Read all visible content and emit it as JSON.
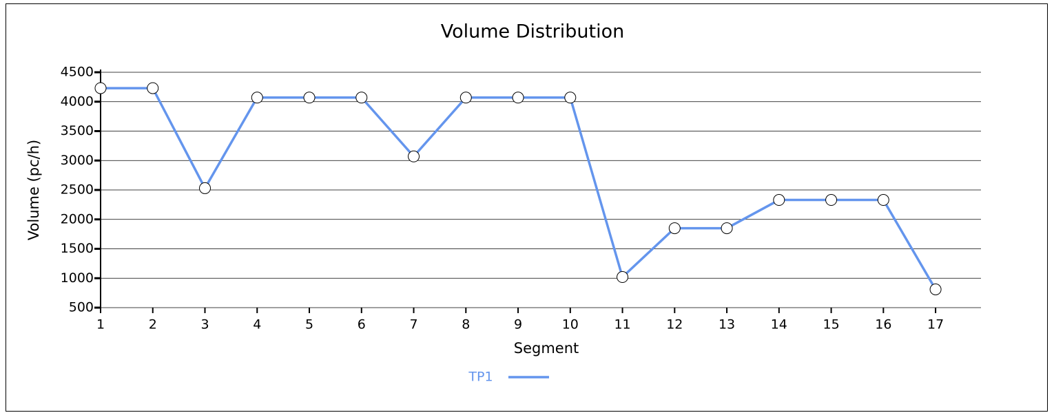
{
  "chart_data": {
    "type": "line",
    "title": "Volume Distribution",
    "x_label": "Segment",
    "y_label": "Volume (pc/h)",
    "x": [
      1,
      2,
      3,
      4,
      5,
      6,
      7,
      8,
      9,
      10,
      11,
      12,
      13,
      14,
      15,
      16,
      17
    ],
    "series": [
      {
        "name": "TP1",
        "color": "#6495ed",
        "values": [
          4230,
          4230,
          2530,
          4070,
          4070,
          4070,
          3070,
          4070,
          4070,
          4070,
          1020,
          1850,
          1850,
          2330,
          2330,
          2330,
          810
        ]
      }
    ],
    "xlim": [
      1,
      17.87
    ],
    "xticks": [
      1,
      2,
      3,
      4,
      5,
      6,
      7,
      8,
      9,
      10,
      11,
      12,
      13,
      14,
      15,
      16,
      17
    ],
    "ylim": [
      500,
      4500
    ],
    "yticks": [
      500,
      1000,
      1500,
      2000,
      2500,
      3000,
      3500,
      4000,
      4500
    ],
    "grid": true,
    "legend": "bottom"
  }
}
